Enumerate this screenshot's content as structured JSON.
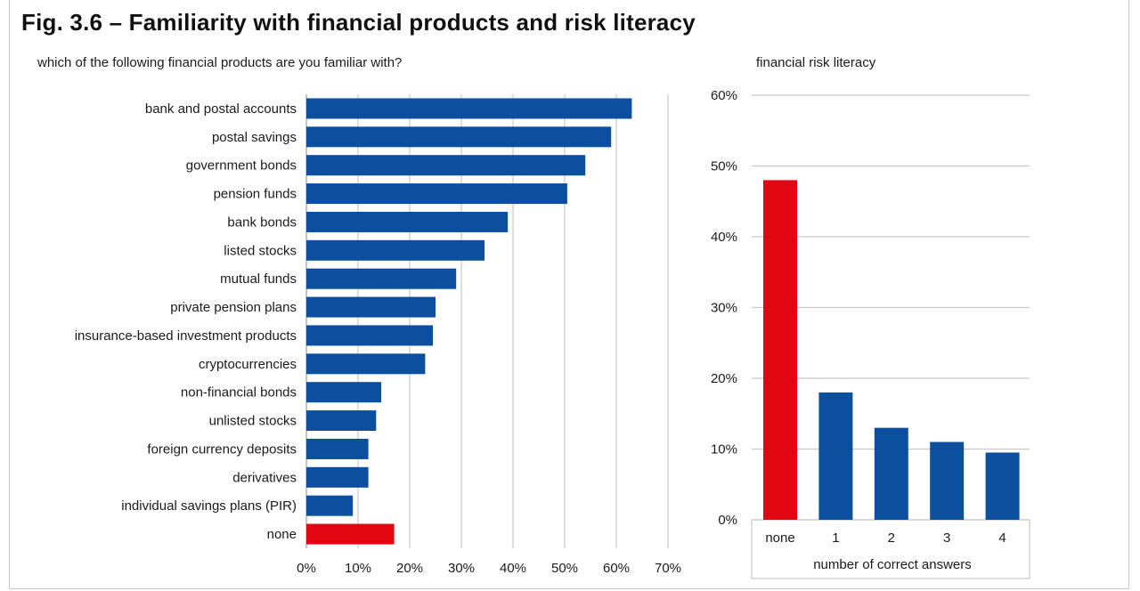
{
  "figure": {
    "title": "Fig. 3.6 – Familiarity with financial products and risk literacy"
  },
  "colors": {
    "primary": "#0d4f9f",
    "highlight": "#e30613",
    "gridline": "#c8c8c8"
  },
  "chart_data": [
    {
      "type": "bar",
      "orientation": "horizontal",
      "title": "which of the following financial products are you familiar with?",
      "xlabel": "",
      "ylabel": "",
      "categories": [
        "bank and postal accounts",
        "postal savings",
        "government bonds",
        "pension funds",
        "bank bonds",
        "listed stocks",
        "mutual funds",
        "private pension plans",
        "insurance-based investment products",
        "cryptocurrencies",
        "non-financial bonds",
        "unlisted stocks",
        "foreign currency deposits",
        "derivatives",
        "individual savings plans (PIR)",
        "none"
      ],
      "values": [
        63,
        59,
        54,
        50.5,
        39,
        34.5,
        29,
        25,
        24.5,
        23,
        14.5,
        13.5,
        12,
        12,
        9,
        17
      ],
      "highlight_categories": [
        "none"
      ],
      "xlim": [
        0,
        70
      ],
      "xticks": [
        "0%",
        "10%",
        "20%",
        "30%",
        "40%",
        "50%",
        "60%",
        "70%"
      ],
      "grid": "vertical"
    },
    {
      "type": "bar",
      "orientation": "vertical",
      "title": "financial risk literacy",
      "xlabel": "number of correct answers",
      "ylabel": "",
      "categories": [
        "none",
        "1",
        "2",
        "3",
        "4"
      ],
      "values": [
        48,
        18,
        13,
        11,
        9.5
      ],
      "highlight_categories": [
        "none"
      ],
      "ylim": [
        0,
        60
      ],
      "yticks": [
        "0%",
        "10%",
        "20%",
        "30%",
        "40%",
        "50%",
        "60%"
      ],
      "grid": "horizontal"
    }
  ]
}
